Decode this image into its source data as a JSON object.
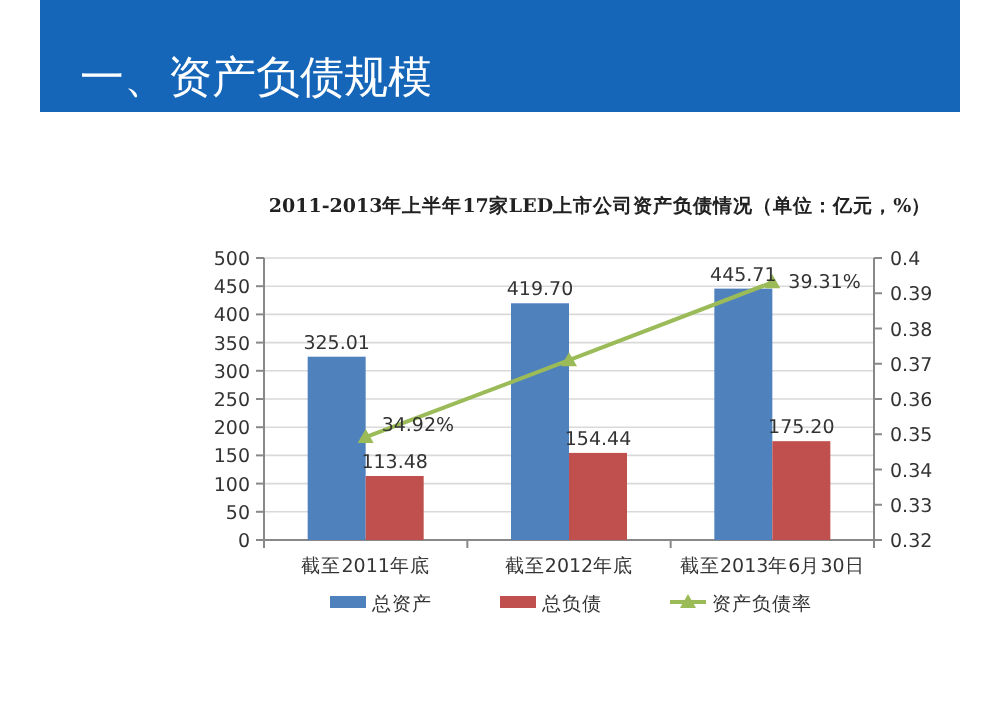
{
  "chart_data": {
    "type": "bar",
    "title": "一、资产负债规模",
    "subtitle": "2011-2013年上半年17家LED上市公司资产负债情况（单位：亿元，%）",
    "categories": [
      "截至2011年底",
      "截至2012年底",
      "截至2013年6月30日"
    ],
    "series": [
      {
        "name": "总资产",
        "color": "#4f81bd",
        "values": [
          325.01,
          419.7,
          445.71
        ],
        "value_labels": [
          "325.01",
          "419.70",
          "445.71"
        ]
      },
      {
        "name": "总负债",
        "color": "#c0504d",
        "values": [
          113.48,
          154.44,
          175.2
        ],
        "value_labels": [
          "113.48",
          "154.44",
          "175.20"
        ]
      },
      {
        "name": "资产负债率",
        "type": "line",
        "axis": "y2",
        "color": "#9bbb59",
        "marker": "triangle",
        "values": [
          0.3492,
          0.371,
          0.3931
        ],
        "value_labels": [
          "34.92%",
          null,
          "39.31%"
        ]
      }
    ],
    "ylim": [
      0,
      500
    ],
    "yticks": [
      0,
      50,
      100,
      150,
      200,
      250,
      300,
      350,
      400,
      450,
      500
    ],
    "y2lim": [
      0.32,
      0.4
    ],
    "y2ticks": [
      0.32,
      0.33,
      0.34,
      0.35,
      0.36,
      0.37,
      0.38,
      0.39,
      0.4
    ],
    "grid": "y",
    "legend": "bottom"
  }
}
